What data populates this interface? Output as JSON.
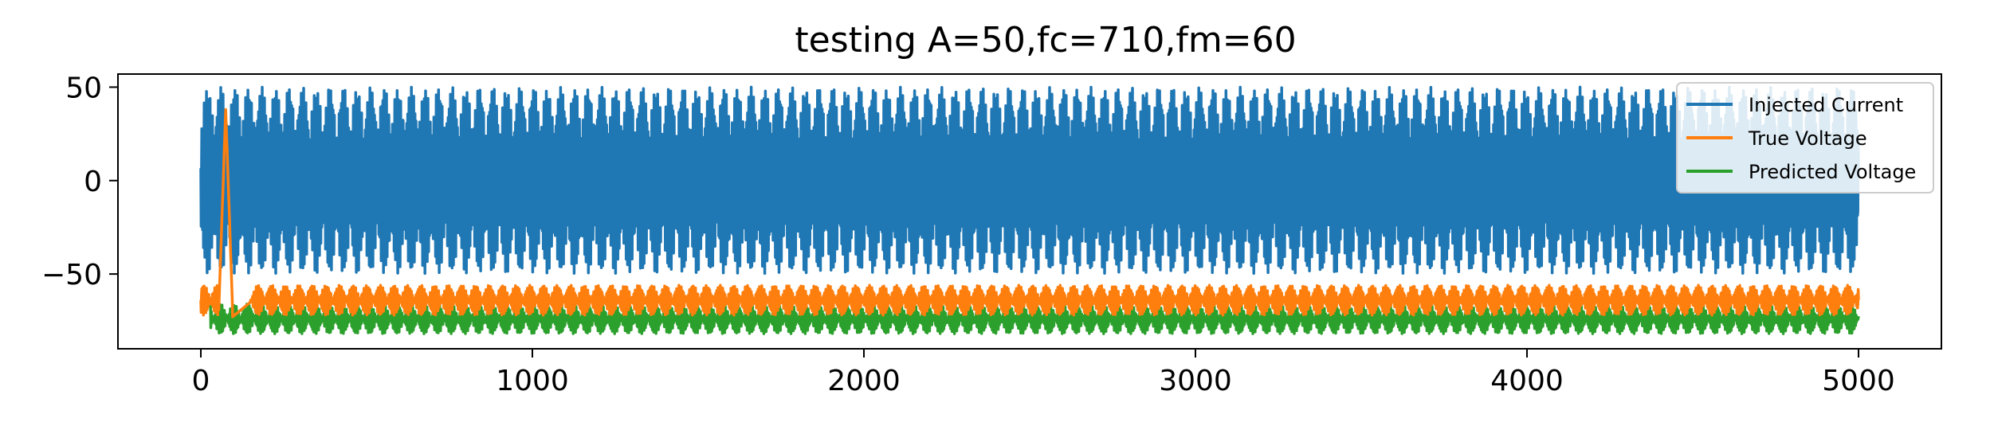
{
  "chart_data": {
    "type": "line",
    "title": "testing A=50,fc=710,fm=60",
    "xlabel": "",
    "ylabel": "",
    "xlim": [
      -250,
      5250
    ],
    "ylim": [
      -90,
      57
    ],
    "xticks": [
      0,
      1000,
      2000,
      3000,
      4000,
      5000
    ],
    "xtick_labels": [
      "0",
      "1000",
      "2000",
      "3000",
      "4000",
      "5000"
    ],
    "yticks": [
      -50,
      0,
      50
    ],
    "ytick_labels": [
      "−50",
      "0",
      "50"
    ],
    "grid": false,
    "legend_position": "upper right",
    "series": [
      {
        "name": "Injected Current",
        "color": "#1f77b4",
        "model": "amplitude-modulated sine: A=50, fc=710, fm=60, x from 0 to 5000",
        "x_range": [
          0,
          5000
        ],
        "center": 0,
        "amplitude": 50
      },
      {
        "name": "True Voltage",
        "color": "#ff7f0e",
        "x_range": [
          0,
          5000
        ],
        "baseline": -65,
        "oscillation_range": [
          -75,
          -55
        ],
        "transient_spike": {
          "x": 75,
          "peak": 38
        }
      },
      {
        "name": "Predicted Voltage",
        "color": "#2ca02c",
        "x_range": [
          0,
          5000
        ],
        "baseline": -68,
        "oscillation_range": [
          -84,
          -65
        ],
        "start_value": -63
      }
    ]
  }
}
